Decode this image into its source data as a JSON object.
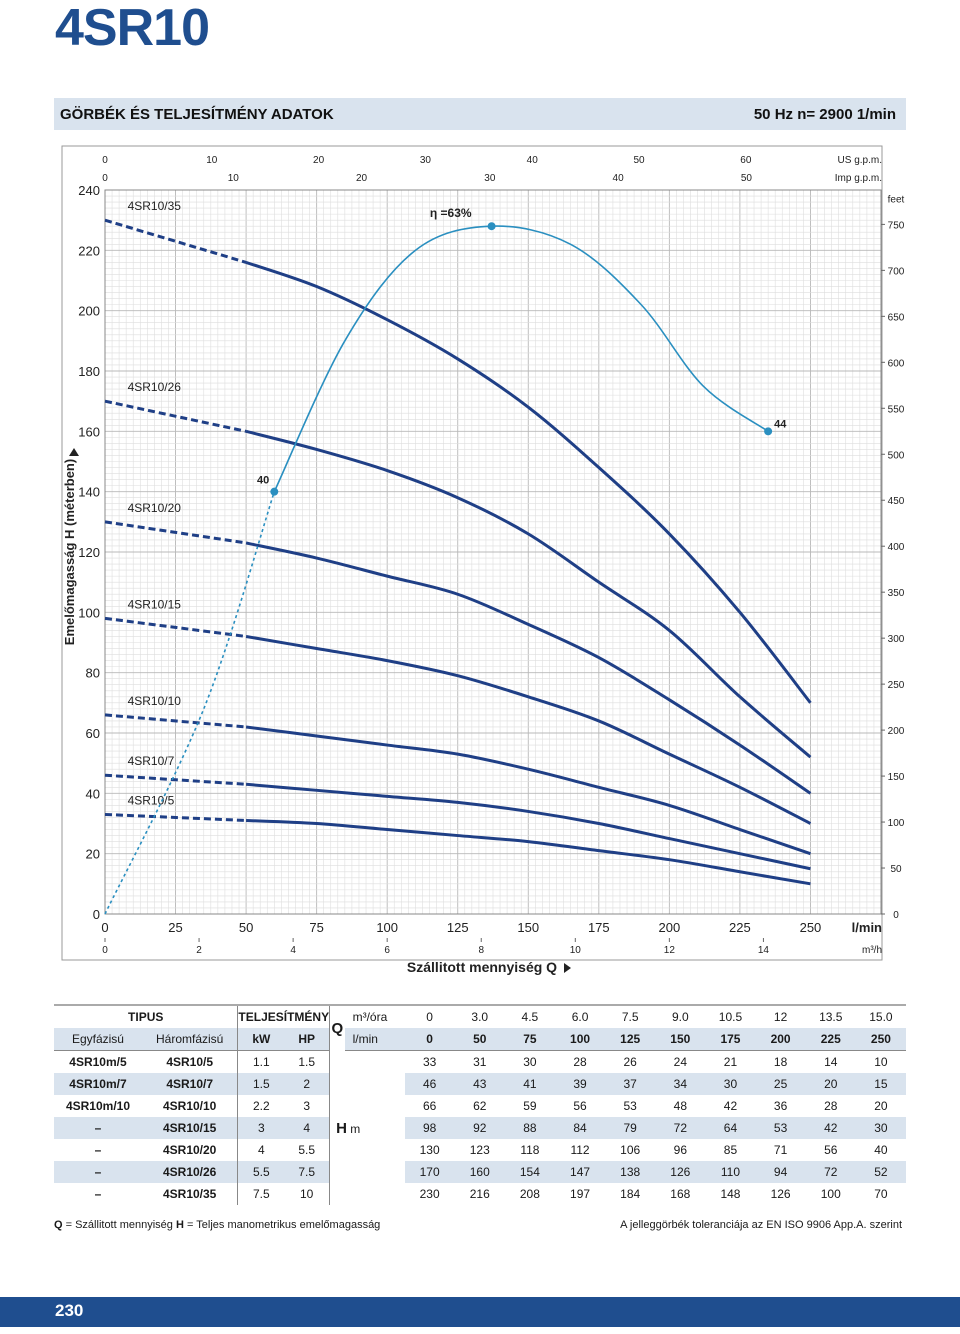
{
  "page": {
    "title": "4SR10",
    "banner_left": "GÖRBÉK ÉS TELJESÍTMÉNY ADATOK",
    "banner_right": "50 Hz   n= 2900  1/min",
    "page_number": "230",
    "footnote_left_q": "Q",
    "footnote_left_q_text": " = Szállitott mennyiség  ",
    "footnote_left_h": "H",
    "footnote_left_h_text": " = Teljes manometrikus emelőmagasság",
    "footnote_right": "A jelleggörbék toleranciája az EN ISO 9906 App.A. szerint",
    "colors": {
      "brand": "#1f4e8f",
      "banner_bg": "#d9e3ee",
      "efficiency": "#2a8fc0",
      "curve": "#1f3f86"
    }
  },
  "chart_data": {
    "type": "line",
    "xlabel": "Szállitott mennyiség Q",
    "ylabel": "Emelőmagasság H (méterben)",
    "x_unit": "l/min",
    "xlim": [
      0,
      275
    ],
    "ylim": [
      0,
      240
    ],
    "x_ticks": [
      "0",
      "25",
      "50",
      "75",
      "100",
      "125",
      "150",
      "175",
      "200",
      "225",
      "250"
    ],
    "y_ticks": [
      "0",
      "20",
      "40",
      "60",
      "80",
      "100",
      "120",
      "140",
      "160",
      "180",
      "200",
      "220",
      "240"
    ],
    "x_ticks_m3h": [
      "0",
      "2",
      "4",
      "6",
      "8",
      "10",
      "12",
      "14"
    ],
    "x_unit_m3h": "m³/h",
    "x_ticks_usgpm": [
      "0",
      "10",
      "20",
      "30",
      "40",
      "50",
      "60"
    ],
    "x_unit_usgpm": "US g.p.m.",
    "x_ticks_impgpm": [
      "0",
      "10",
      "20",
      "30",
      "40",
      "50"
    ],
    "x_unit_impgpm": "Imp g.p.m.",
    "y_ticks_feet": [
      "0",
      "50",
      "100",
      "150",
      "200",
      "250",
      "300",
      "350",
      "400",
      "450",
      "500",
      "550",
      "600",
      "650",
      "700",
      "750"
    ],
    "y_unit_feet": "feet",
    "grid": true,
    "x": [
      0,
      50,
      75,
      100,
      125,
      150,
      175,
      200,
      225,
      250
    ],
    "series": [
      {
        "name": "4SR10/35",
        "values": [
          230,
          216,
          208,
          197,
          184,
          168,
          148,
          126,
          100,
          70
        ]
      },
      {
        "name": "4SR10/26",
        "values": [
          170,
          160,
          154,
          147,
          138,
          126,
          110,
          94,
          72,
          52
        ]
      },
      {
        "name": "4SR10/20",
        "values": [
          130,
          123,
          118,
          112,
          106,
          96,
          85,
          71,
          56,
          40
        ]
      },
      {
        "name": "4SR10/15",
        "values": [
          98,
          92,
          88,
          84,
          79,
          72,
          64,
          53,
          42,
          30
        ]
      },
      {
        "name": "4SR10/10",
        "values": [
          66,
          62,
          59,
          56,
          53,
          48,
          42,
          36,
          28,
          20
        ]
      },
      {
        "name": "4SR10/7",
        "values": [
          46,
          43,
          41,
          39,
          37,
          34,
          30,
          25,
          20,
          15
        ]
      },
      {
        "name": "4SR10/5",
        "values": [
          33,
          31,
          30,
          28,
          26,
          24,
          21,
          18,
          14,
          10
        ]
      }
    ],
    "efficiency": {
      "label_peak": "η =63%",
      "label_left": "40",
      "label_right": "44",
      "points": [
        [
          0,
          0
        ],
        [
          35,
          68
        ],
        [
          60,
          140
        ],
        [
          85,
          190
        ],
        [
          110,
          220
        ],
        [
          137,
          228
        ],
        [
          165,
          222
        ],
        [
          190,
          202
        ],
        [
          212,
          175
        ],
        [
          235,
          160
        ]
      ],
      "peak": [
        137,
        228
      ],
      "left_marker": [
        60,
        140
      ],
      "right_marker": [
        235,
        160
      ]
    }
  },
  "table": {
    "hdr_tipus": "TIPUS",
    "hdr_telj": "TELJESÍTMÉNY",
    "hdr_q": "Q",
    "hdr_m3": "m³/óra",
    "hdr_lmin": "l/min",
    "hdr_egy": "Egyfázisú",
    "hdr_harom": "Háromfázisú",
    "hdr_kw": "kW",
    "hdr_hp": "HP",
    "hdr_h": "H",
    "hdr_hm": "m",
    "m3h": [
      "0",
      "3.0",
      "4.5",
      "6.0",
      "7.5",
      "9.0",
      "10.5",
      "12",
      "13.5",
      "15.0"
    ],
    "lmin": [
      "0",
      "50",
      "75",
      "100",
      "125",
      "150",
      "175",
      "200",
      "225",
      "250"
    ],
    "rows": [
      {
        "single": "4SR10m/5",
        "three": "4SR10/5",
        "kw": "1.1",
        "hp": "1.5",
        "h": [
          "33",
          "31",
          "30",
          "28",
          "26",
          "24",
          "21",
          "18",
          "14",
          "10"
        ]
      },
      {
        "single": "4SR10m/7",
        "three": "4SR10/7",
        "kw": "1.5",
        "hp": "2",
        "h": [
          "46",
          "43",
          "41",
          "39",
          "37",
          "34",
          "30",
          "25",
          "20",
          "15"
        ]
      },
      {
        "single": "4SR10m/10",
        "three": "4SR10/10",
        "kw": "2.2",
        "hp": "3",
        "h": [
          "66",
          "62",
          "59",
          "56",
          "53",
          "48",
          "42",
          "36",
          "28",
          "20"
        ]
      },
      {
        "single": "–",
        "three": "4SR10/15",
        "kw": "3",
        "hp": "4",
        "h": [
          "98",
          "92",
          "88",
          "84",
          "79",
          "72",
          "64",
          "53",
          "42",
          "30"
        ]
      },
      {
        "single": "–",
        "three": "4SR10/20",
        "kw": "4",
        "hp": "5.5",
        "h": [
          "130",
          "123",
          "118",
          "112",
          "106",
          "96",
          "85",
          "71",
          "56",
          "40"
        ]
      },
      {
        "single": "–",
        "three": "4SR10/26",
        "kw": "5.5",
        "hp": "7.5",
        "h": [
          "170",
          "160",
          "154",
          "147",
          "138",
          "126",
          "110",
          "94",
          "72",
          "52"
        ]
      },
      {
        "single": "–",
        "three": "4SR10/35",
        "kw": "7.5",
        "hp": "10",
        "h": [
          "230",
          "216",
          "208",
          "197",
          "184",
          "168",
          "148",
          "126",
          "100",
          "70"
        ]
      }
    ]
  }
}
